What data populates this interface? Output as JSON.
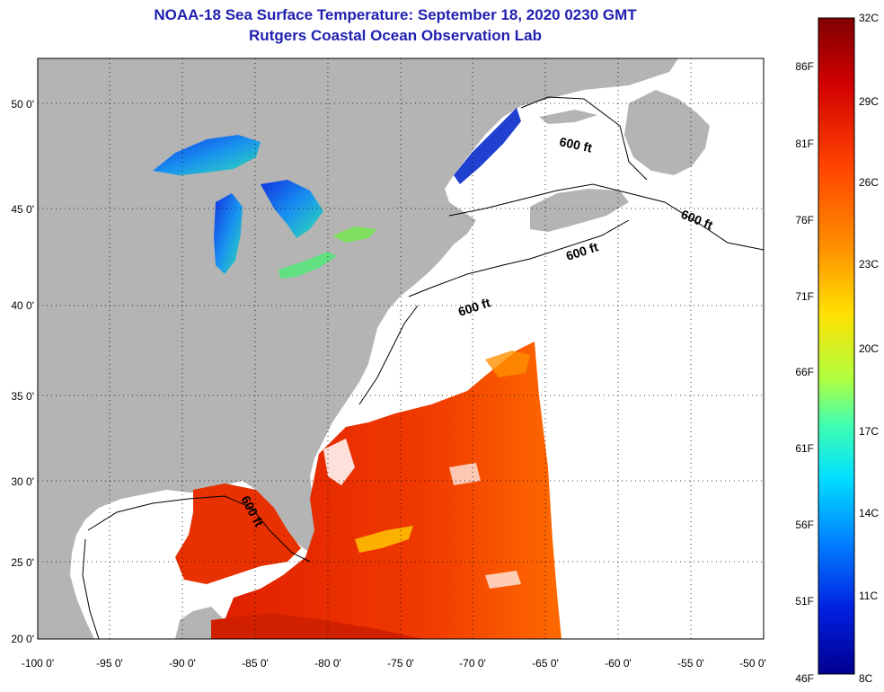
{
  "header": {
    "title": "NOAA-18 Sea Surface Temperature:  September 18, 2020 0230 GMT",
    "subtitle": "Rutgers Coastal Ocean Observation Lab"
  },
  "map": {
    "lon_range": [
      -100,
      -50
    ],
    "lat_range": [
      20,
      52.5
    ],
    "lon_ticks": [
      "-100 0'",
      "-95 0'",
      "-90 0'",
      "-85 0'",
      "-80 0'",
      "-75 0'",
      "-70 0'",
      "-65 0'",
      "-60 0'",
      "-55 0'",
      "-50 0'"
    ],
    "lat_ticks": [
      "20 0'",
      "25 0'",
      "30 0'",
      "35 0'",
      "40 0'",
      "45 0'",
      "50 0'"
    ],
    "grid": "dotted",
    "contour_labels": [
      "600 ft",
      "600 ft",
      "600 ft",
      "600 ft",
      "600 ft"
    ],
    "colors": {
      "land": "#b4b4b4",
      "no_data": "#ffffff",
      "gulf_stream": "#e61e00",
      "lakes": "#2050e0"
    }
  },
  "colorbar": {
    "celsius_labels": [
      "32C",
      "29C",
      "26C",
      "23C",
      "20C",
      "17C",
      "14C",
      "11C",
      "8C"
    ],
    "fahrenheit_labels": [
      "86F",
      "81F",
      "76F",
      "71F",
      "66F",
      "61F",
      "56F",
      "51F",
      "46F"
    ],
    "stops": [
      "#800000",
      "#d00000",
      "#ff4000",
      "#ff9000",
      "#ffe000",
      "#b0ff40",
      "#40ffb0",
      "#00e0ff",
      "#0080ff",
      "#0020e0",
      "#000090"
    ]
  }
}
